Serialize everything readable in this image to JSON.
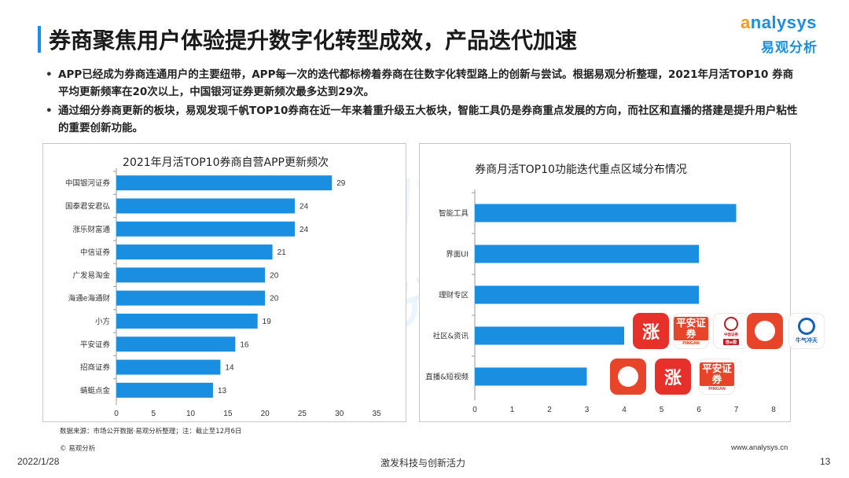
{
  "header": {
    "title": "券商聚焦用户体验提升数字化转型成效，产品迭代加速",
    "logo_en": "nalysys",
    "logo_cn": "易观分析"
  },
  "bullets": [
    "APP已经成为券商连通用户的主要纽带，APP每一次的迭代都标榜着券商在往数字化转型路上的创新与尝试。根据易观分析整理，2021年月活TOP10 券商平均更新频率在20次以上，中国银河证券更新频次最多达到29次。",
    "通过细分券商更新的板块，易观发现千帆TOP10券商在近一年来着重升级五大板块，智能工具仍是券商重点发展的方向，而社区和直播的搭建是提升用户粘性的重要创新功能。"
  ],
  "chart_data": [
    {
      "type": "bar",
      "orientation": "horizontal",
      "title": "2021年月活TOP10券商自营APP更新频次",
      "categories": [
        "中国银河证券",
        "国泰君安君弘",
        "涨乐财富通",
        "中信证券",
        "广发易淘金",
        "海通e海通财",
        "小方",
        "平安证券",
        "招商证券",
        "蜻蜓点金"
      ],
      "values": [
        29,
        24,
        24,
        21,
        20,
        20,
        19,
        16,
        14,
        13
      ],
      "xlim": [
        0,
        35
      ],
      "ticks": [
        0,
        5,
        10,
        15,
        20,
        25,
        30,
        35
      ],
      "data_labels": true,
      "color": "#1a8ee0"
    },
    {
      "type": "bar",
      "orientation": "horizontal",
      "title": "券商月活TOP10功能迭代重点区域分布情况",
      "categories": [
        "智能工具",
        "界面UI",
        "理财专区",
        "社区&资讯",
        "直播&短视频"
      ],
      "values": [
        7,
        6,
        6,
        4,
        3
      ],
      "xlim": [
        0,
        8
      ],
      "ticks": [
        0,
        1,
        2,
        3,
        4,
        5,
        6,
        7,
        8
      ],
      "data_labels": false,
      "color": "#1a8ee0"
    }
  ],
  "app_icons": {
    "community_row": [
      {
        "name": "zhangle",
        "text": "涨"
      },
      {
        "name": "pingan",
        "text": "平安证券",
        "sub": "PINGAN"
      },
      {
        "name": "citic",
        "sub": "中信证券",
        "tag": "信e投"
      },
      {
        "name": "thumb"
      },
      {
        "name": "niu",
        "text": "牛气冲天"
      }
    ],
    "live_row": [
      {
        "name": "thumb"
      },
      {
        "name": "zhangle",
        "text": "涨"
      },
      {
        "name": "pingan",
        "text": "平安证券",
        "sub": "PINGAN"
      }
    ]
  },
  "watermark": {
    "en": "nalysys",
    "cn": "易观分析"
  },
  "footer": {
    "source": "数据来源：市场公开数据·易观分析整理；注：截止至12月6日",
    "copyright": "© 易观分析",
    "website": "www.analysys.cn",
    "date": "2022/1/28",
    "slogan": "激发科技与创新活力",
    "page": "13"
  }
}
